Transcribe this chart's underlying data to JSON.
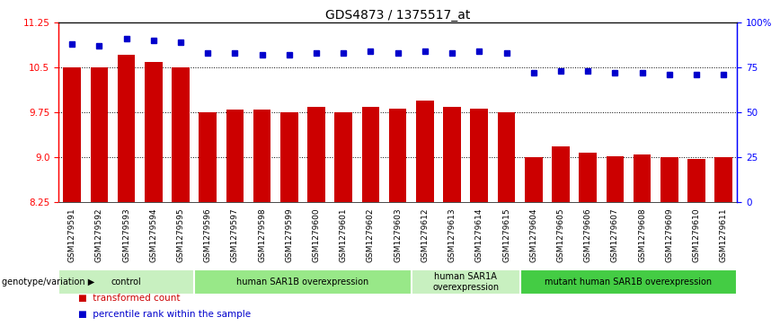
{
  "title": "GDS4873 / 1375517_at",
  "samples": [
    "GSM1279591",
    "GSM1279592",
    "GSM1279593",
    "GSM1279594",
    "GSM1279595",
    "GSM1279596",
    "GSM1279597",
    "GSM1279598",
    "GSM1279599",
    "GSM1279600",
    "GSM1279601",
    "GSM1279602",
    "GSM1279603",
    "GSM1279612",
    "GSM1279613",
    "GSM1279614",
    "GSM1279615",
    "GSM1279604",
    "GSM1279605",
    "GSM1279606",
    "GSM1279607",
    "GSM1279608",
    "GSM1279609",
    "GSM1279610",
    "GSM1279611"
  ],
  "bar_values": [
    10.5,
    10.5,
    10.72,
    10.6,
    10.5,
    9.75,
    9.8,
    9.8,
    9.75,
    9.85,
    9.75,
    9.85,
    9.82,
    9.95,
    9.85,
    9.82,
    9.75,
    9.0,
    9.18,
    9.07,
    9.02,
    9.05,
    9.0,
    8.97,
    9.0
  ],
  "dot_values": [
    88,
    87,
    91,
    90,
    89,
    83,
    83,
    82,
    82,
    83,
    83,
    84,
    83,
    84,
    83,
    84,
    83,
    72,
    73,
    73,
    72,
    72,
    71,
    71,
    71
  ],
  "groups": [
    {
      "label": "control",
      "start": 0,
      "end": 5,
      "color": "#c8f0c0"
    },
    {
      "label": "human SAR1B overexpression",
      "start": 5,
      "end": 13,
      "color": "#98e888"
    },
    {
      "label": "human SAR1A\noverexpression",
      "start": 13,
      "end": 17,
      "color": "#c8f0c0"
    },
    {
      "label": "mutant human SAR1B overexpression",
      "start": 17,
      "end": 25,
      "color": "#44cc44"
    }
  ],
  "bar_color": "#cc0000",
  "dot_color": "#0000cc",
  "ylim_left": [
    8.25,
    11.25
  ],
  "ylim_right": [
    0,
    100
  ],
  "yticks_left": [
    8.25,
    9.0,
    9.75,
    10.5,
    11.25
  ],
  "yticks_right": [
    0,
    25,
    50,
    75,
    100
  ],
  "ytick_labels_right": [
    "0",
    "25",
    "50",
    "75",
    "100%"
  ],
  "grid_values": [
    9.0,
    9.75,
    10.5
  ],
  "sample_bg_color": "#d0d0d0",
  "legend_red_label": "transformed count",
  "legend_blue_label": "percentile rank within the sample",
  "genotype_label": "genotype/variation"
}
